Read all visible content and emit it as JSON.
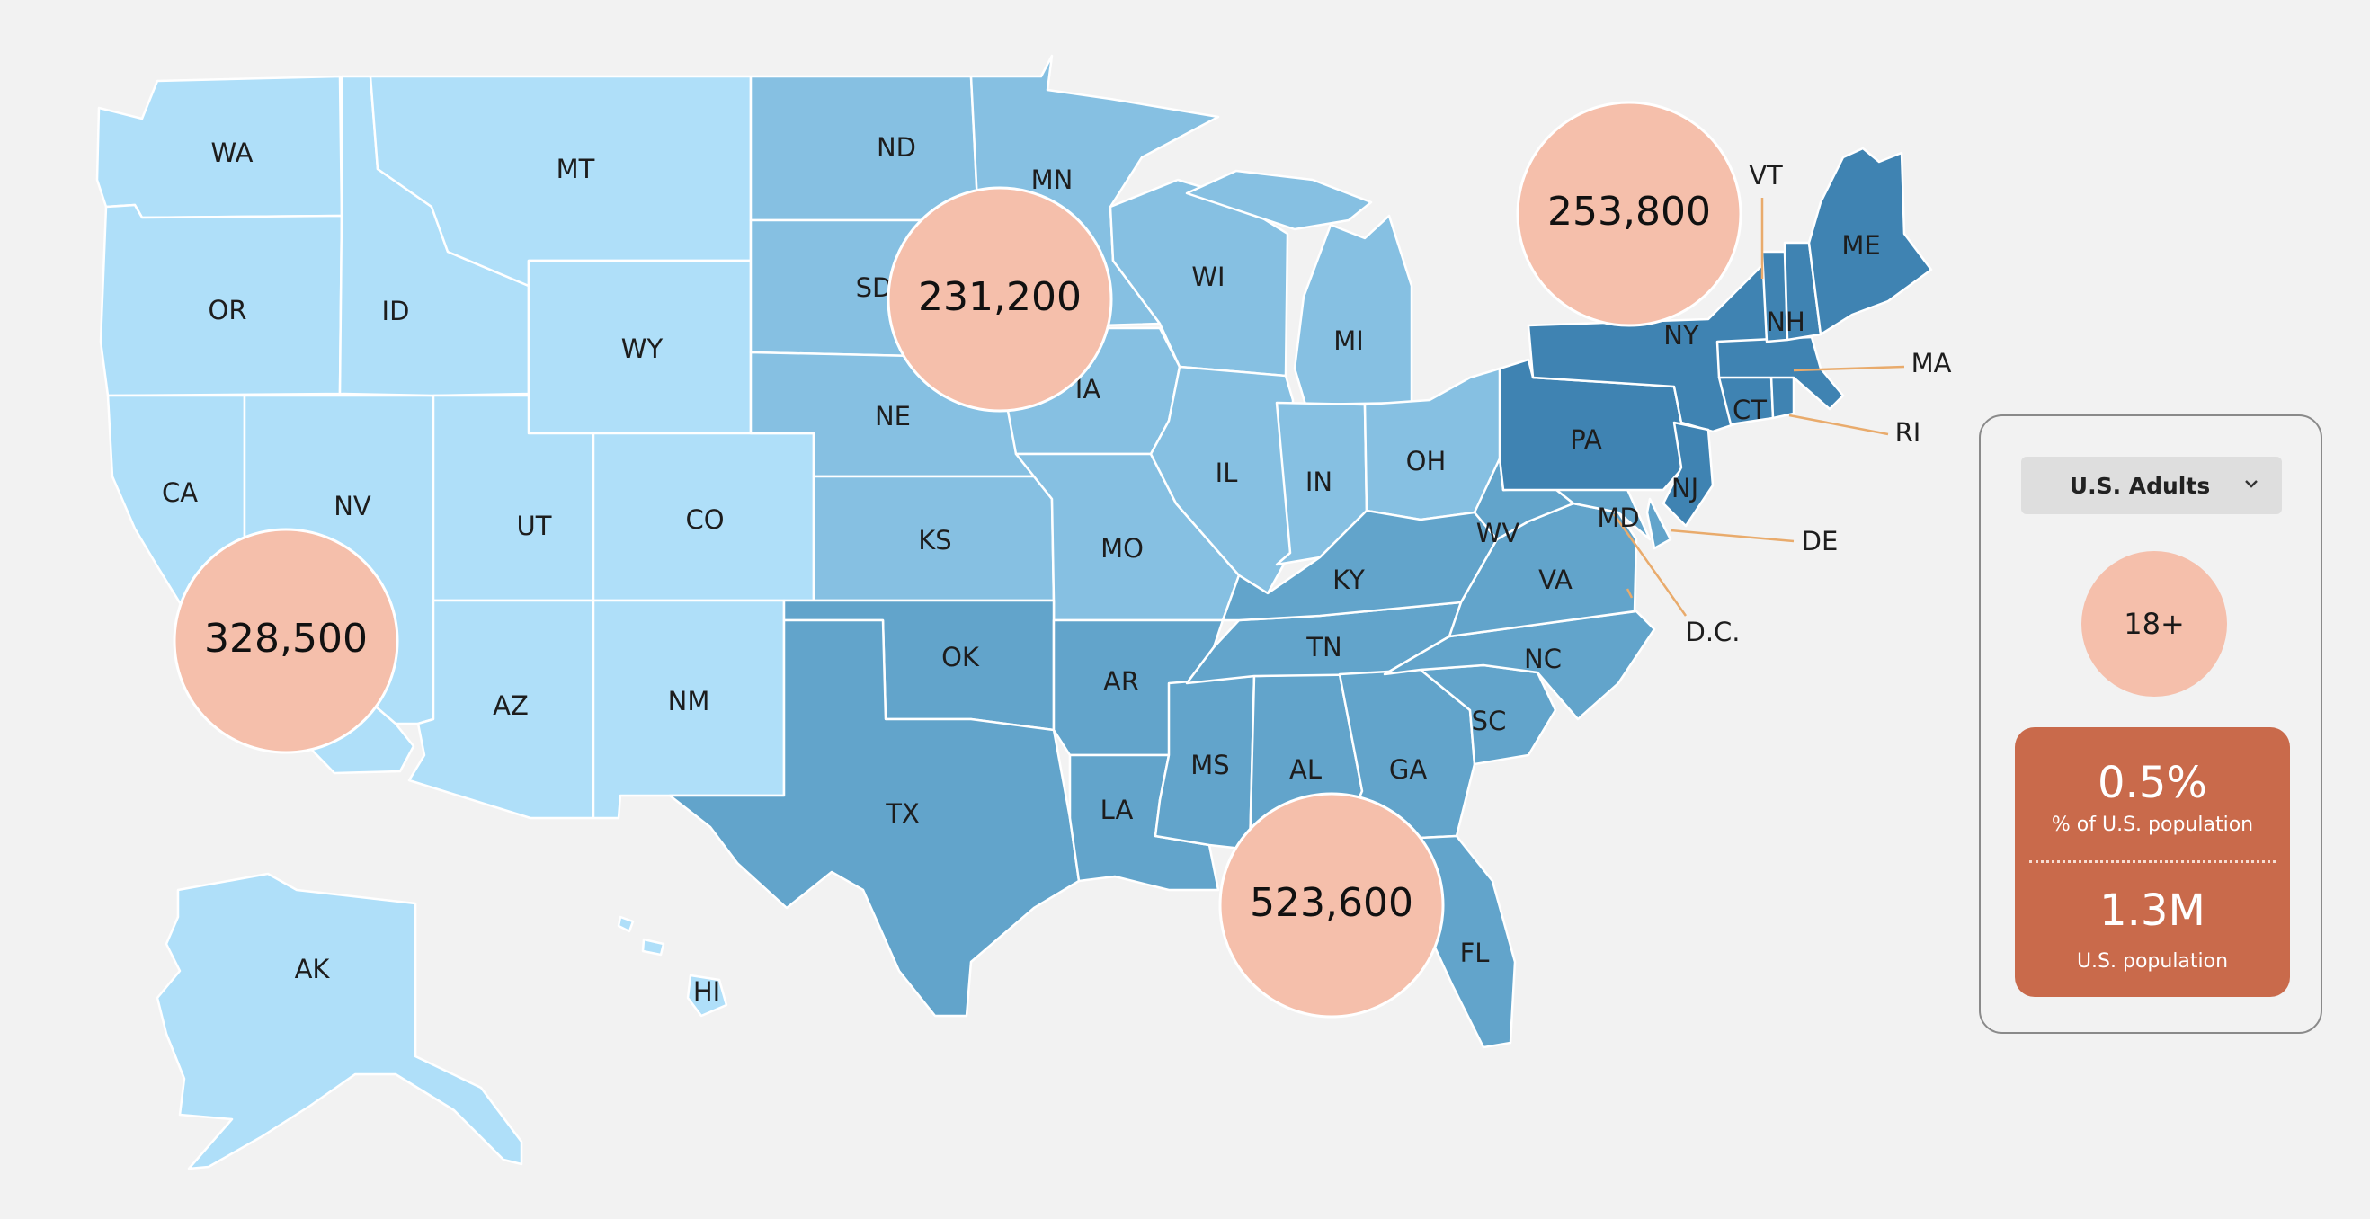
{
  "map": {
    "colors": {
      "tier1": "#afdff9",
      "tier2": "#86c0e2",
      "tier3": "#62a4cb",
      "tier4": "#3f83b2",
      "bubble": "#f5bfab",
      "leader": "#e9ab6c"
    },
    "states": {
      "WA": "WA",
      "OR": "OR",
      "CA": "CA",
      "NV": "NV",
      "ID": "ID",
      "MT": "MT",
      "WY": "WY",
      "UT": "UT",
      "CO": "CO",
      "AZ": "AZ",
      "NM": "NM",
      "AK": "AK",
      "HI": "HI",
      "ND": "ND",
      "SD": "SD",
      "NE": "NE",
      "KS": "KS",
      "MN": "MN",
      "IA": "IA",
      "MO": "MO",
      "WI": "WI",
      "IL": "IL",
      "MI": "MI",
      "IN": "IN",
      "OH": "OH",
      "OK": "OK",
      "TX": "TX",
      "AR": "AR",
      "LA": "LA",
      "MS": "MS",
      "AL": "AL",
      "TN": "TN",
      "KY": "KY",
      "GA": "GA",
      "FL": "FL",
      "SC": "SC",
      "NC": "NC",
      "VA": "VA",
      "WV": "WV",
      "MD": "MD",
      "DE": "DE",
      "DC": "D.C.",
      "PA": "PA",
      "NJ": "NJ",
      "NY": "NY",
      "CT": "CT",
      "RI": "RI",
      "MA": "MA",
      "VT": "VT",
      "NH": "NH",
      "ME": "ME"
    },
    "regions": {
      "west": "328,500",
      "midwest": "231,200",
      "northeast": "253,800",
      "south": "523,600"
    }
  },
  "panel": {
    "dropdown_value": "U.S. Adults",
    "age": "18+",
    "percent": "0.5%",
    "percent_label": "% of U.S. population",
    "population": "1.3M",
    "population_label": "U.S. population"
  }
}
